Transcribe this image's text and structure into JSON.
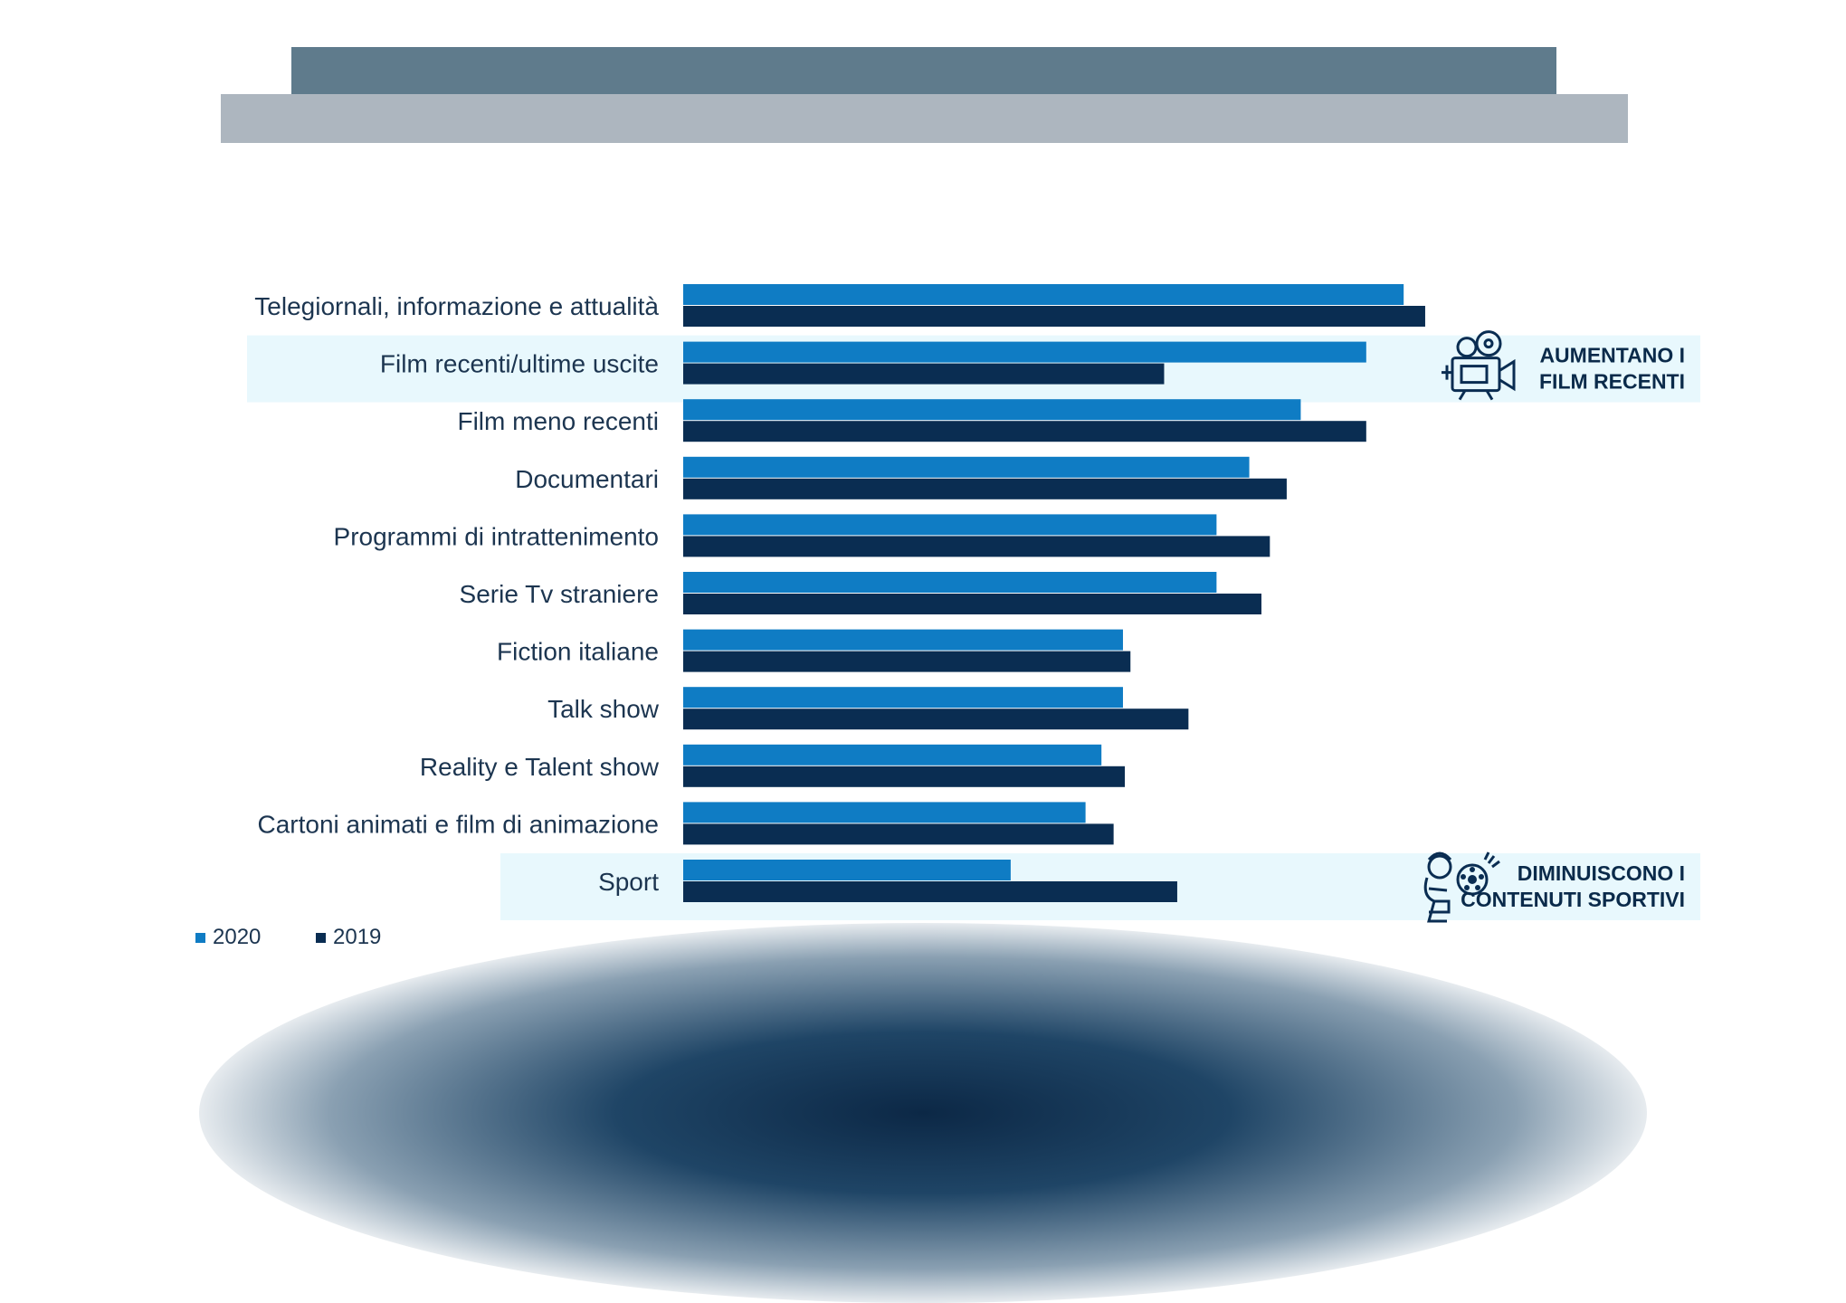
{
  "colors": {
    "series_2020": "#0f7cc4",
    "series_2019": "#0a2d52",
    "highlight_band": "#e8f8fd",
    "banner_dark": "#5f7b8c",
    "banner_light": "#adb6bf",
    "label_text": "#1c3550"
  },
  "chart_data": {
    "type": "bar",
    "orientation": "horizontal",
    "categories": [
      "Telegiornali, informazione e attualità",
      "Film recenti/ultime uscite",
      "Film meno recenti",
      "Documentari",
      "Programmi di intrattenimento",
      "Serie Tv straniere",
      "Fiction italiane",
      "Talk show",
      "Reality e Talent show",
      "Cartoni animati e film di animazione",
      "Sport"
    ],
    "series": [
      {
        "name": "2020",
        "values": [
          77,
          73,
          66,
          60.5,
          57,
          57,
          47,
          47,
          44.7,
          43,
          35
        ]
      },
      {
        "name": "2019",
        "values": [
          79.3,
          51.4,
          73,
          64.5,
          62.7,
          61.8,
          47.8,
          54,
          47.2,
          46,
          52.8
        ]
      }
    ],
    "xlim": [
      0,
      100
    ],
    "grid": false,
    "legend_position": "bottom-left",
    "highlighted_categories": [
      "Film recenti/ultime uscite",
      "Sport"
    ],
    "annotations": [
      {
        "category": "Film recenti/ultime uscite",
        "icon": "film-camera-icon",
        "lines": [
          "AUMENTANO I",
          "FILM RECENTI"
        ]
      },
      {
        "category": "Sport",
        "icon": "soccer-player-icon",
        "lines": [
          "DIMINUISCONO I",
          "CONTENUTI SPORTIVI"
        ]
      }
    ]
  }
}
